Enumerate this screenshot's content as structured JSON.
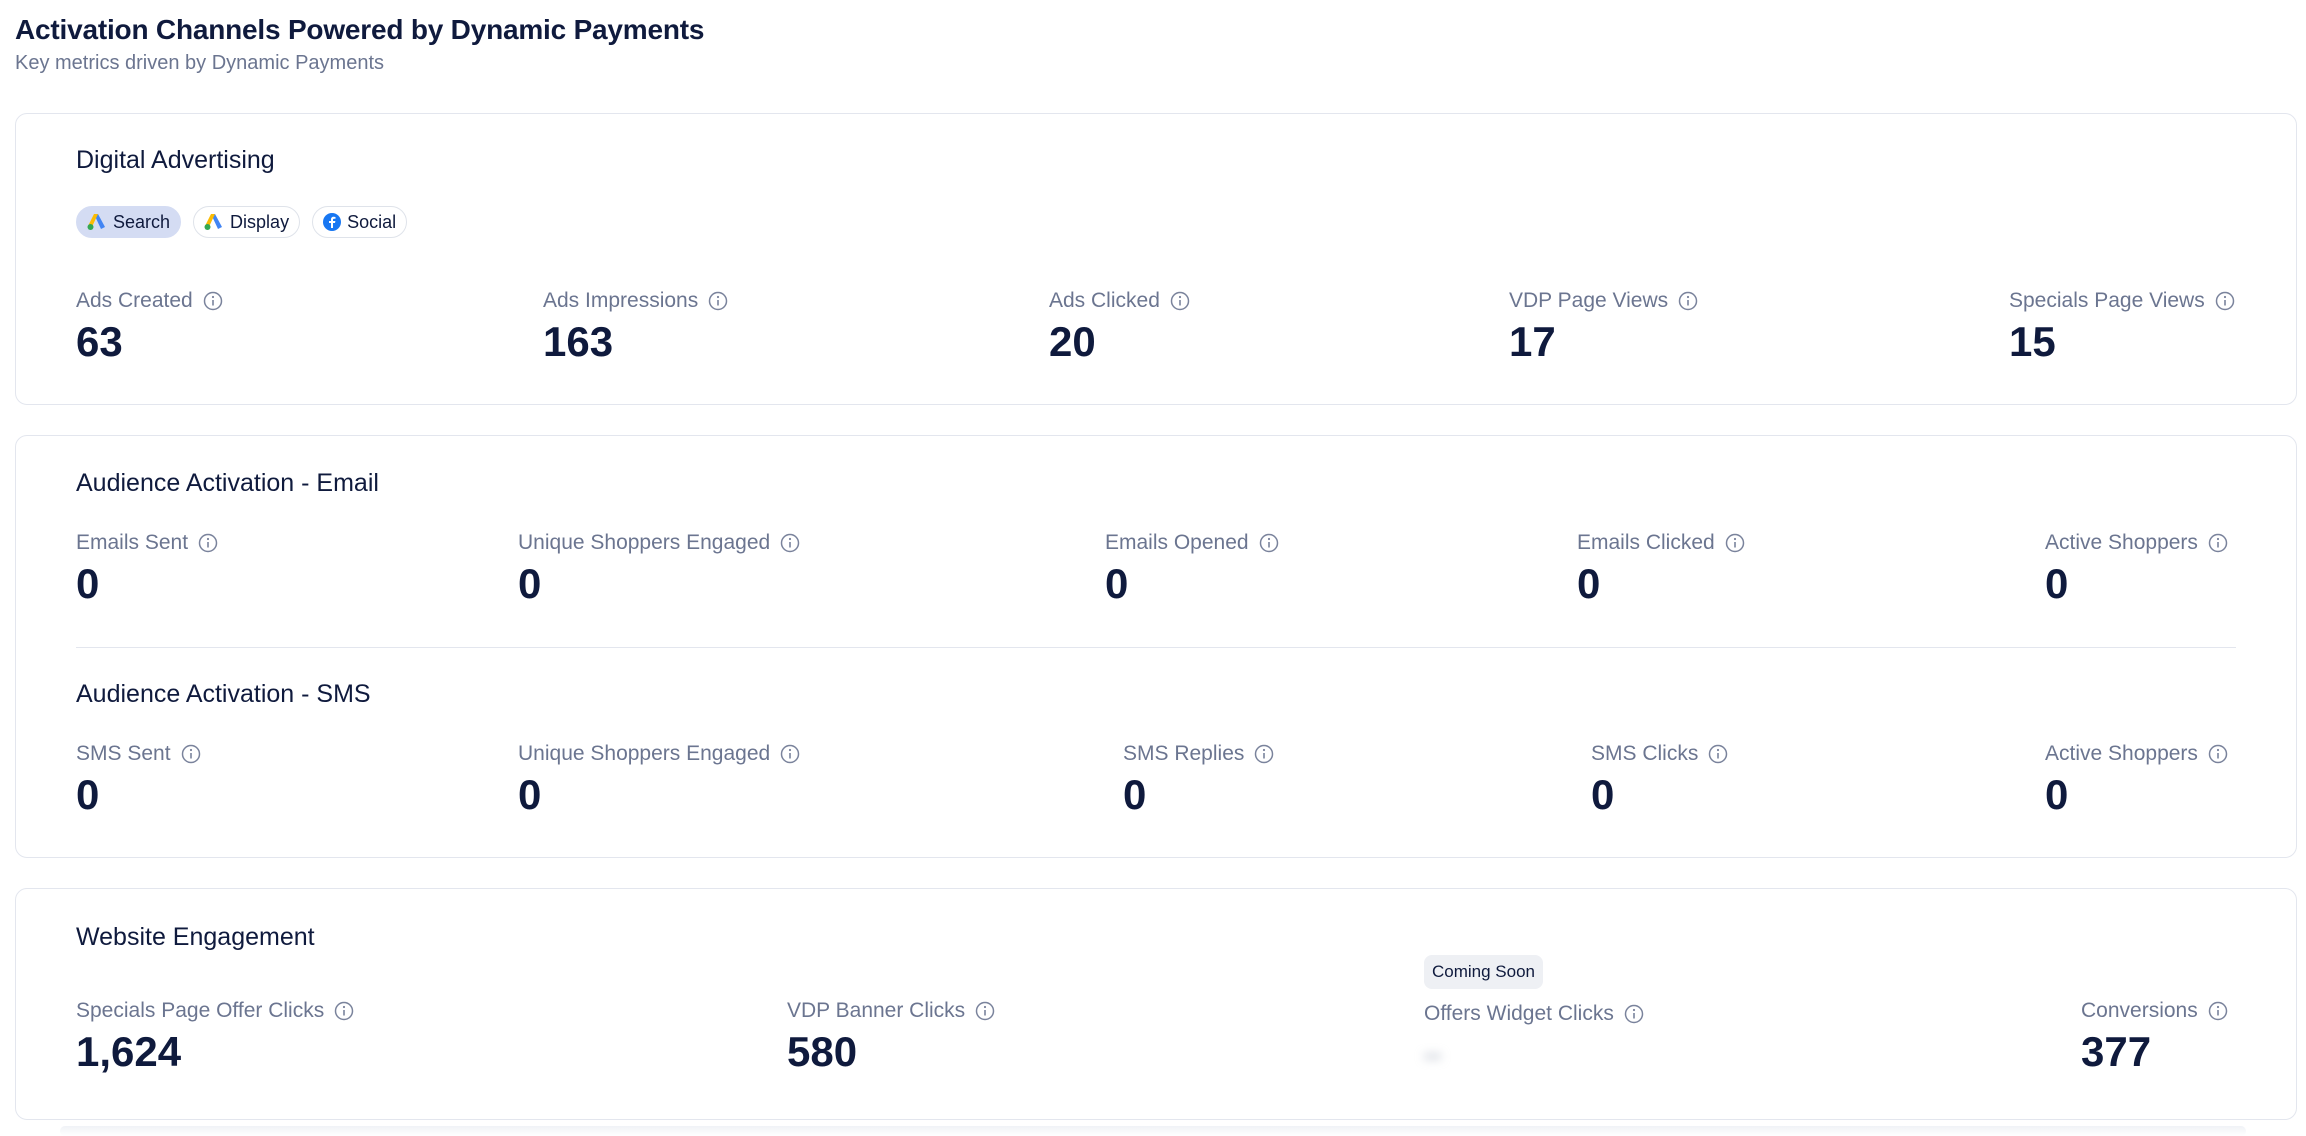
{
  "header": {
    "title": "Activation Channels Powered by Dynamic Payments",
    "subtitle": "Key metrics driven by Dynamic Payments"
  },
  "digital": {
    "title": "Digital Advertising",
    "chips": [
      {
        "label": "Search",
        "icon": "google-ads-icon",
        "active": true
      },
      {
        "label": "Display",
        "icon": "google-ads-icon",
        "active": false
      },
      {
        "label": "Social",
        "icon": "facebook-icon",
        "active": false
      }
    ],
    "metrics": [
      {
        "label": "Ads Created",
        "value": "63"
      },
      {
        "label": "Ads Impressions",
        "value": "163"
      },
      {
        "label": "Ads Clicked",
        "value": "20"
      },
      {
        "label": "VDP Page Views",
        "value": "17"
      },
      {
        "label": "Specials Page Views",
        "value": "15"
      }
    ]
  },
  "email": {
    "title": "Audience Activation - Email",
    "metrics": [
      {
        "label": "Emails Sent",
        "value": "0"
      },
      {
        "label": "Unique Shoppers Engaged",
        "value": "0"
      },
      {
        "label": "Emails Opened",
        "value": "0"
      },
      {
        "label": "Emails Clicked",
        "value": "0"
      },
      {
        "label": "Active Shoppers",
        "value": "0"
      }
    ]
  },
  "sms": {
    "title": "Audience Activation - SMS",
    "metrics": [
      {
        "label": "SMS Sent",
        "value": "0"
      },
      {
        "label": "Unique Shoppers Engaged",
        "value": "0"
      },
      {
        "label": "SMS Replies",
        "value": "0"
      },
      {
        "label": "SMS Clicks",
        "value": "0"
      },
      {
        "label": "Active Shoppers",
        "value": "0"
      }
    ]
  },
  "website": {
    "title": "Website Engagement",
    "badge": "Coming Soon",
    "metrics": [
      {
        "label": "Specials Page Offer Clicks",
        "value": "1,624"
      },
      {
        "label": "VDP Banner Clicks",
        "value": "580"
      },
      {
        "label": "Offers Widget Clicks",
        "value": "--"
      },
      {
        "label": "Conversions",
        "value": "377"
      }
    ]
  },
  "colors": {
    "text_primary": "#0f1a3d",
    "text_secondary": "#6b7590",
    "border": "#e3e6ee",
    "chip_active_bg": "#d4dcf3"
  }
}
